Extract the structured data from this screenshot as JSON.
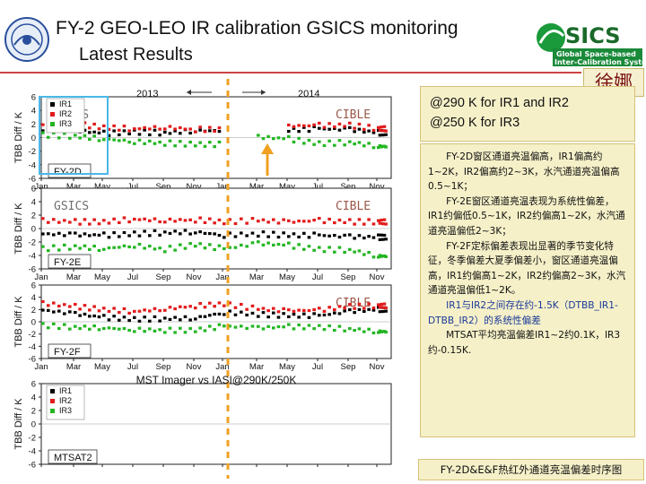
{
  "header": {
    "title_line1": "FY-2 GEO-LEO IR calibration GSICS monitoring",
    "title_line2": "Latest Results",
    "author": "徐娜",
    "gsics_logo": {
      "word": "GSICS",
      "line1": "Global Space-based",
      "line2": "Inter-Calibration System"
    }
  },
  "colors": {
    "ir1": "#000000",
    "ir2": "#e21b1b",
    "ir3": "#22b622",
    "accent_rule": "#cc4444",
    "box_fill": "#f5f0c8",
    "divider": "#f0a020"
  },
  "year_labels": [
    "2013",
    "2014"
  ],
  "notes": {
    "line1": "@290 K for IR1 and IR2",
    "line2": "@250 K for IR3"
  },
  "description": [
    "FY-2D窗区通道亮温偏高，IR1偏高约1~2K，IR2偏高约2~3K，水汽通道亮温偏高0.5~1K；",
    "FY-2E窗区通道亮温表现为系统性偏差，IR1约偏低0.5~1K，IR2约偏高1~2K，水汽通道亮温偏低2~3K；",
    "FY-2F定标偏差表现出显著的季节变化特征，冬季偏差大夏季偏差小，窗区通道亮温偏高，IR1约偏高1~2K，IR2约偏高2~3K，水汽通道亮温偏低1~2K。",
    "IR1与IR2之间存在约-1.5K（DTBB_IR1-DTBB_IR2）的系统性偏差",
    "MTSAT平均亮温偏差IR1~2约0.1K，IR3约-0.15K."
  ],
  "footer_caption": "FY-2D&E&F热红外通道亮温偏差时序图",
  "chart_data": {
    "type": "line",
    "xlabel": "MST Imager vs IASI@290K/250K",
    "ylabel": "TBB Diff / K",
    "ylim": [
      -6,
      6
    ],
    "yticks": [
      6,
      4,
      2,
      0,
      -2,
      -4,
      -6
    ],
    "x_months": [
      "Jan",
      "Mar",
      "May",
      "Jul",
      "Sep",
      "Nov",
      "Jan",
      "Mar",
      "May",
      "Jul",
      "Sep",
      "Nov"
    ],
    "legend": [
      "IR1",
      "IR2",
      "IR3"
    ],
    "watermarks": {
      "left": "GSICS",
      "right": "CIBLE"
    },
    "panels": [
      {
        "label": "FY-2D",
        "legend_shown": true,
        "watermark_left": "GSICS",
        "watermark_right": "CIBLE",
        "series": [
          {
            "name": "IR1",
            "values": [
              1.0,
              1.1,
              0.6,
              0.8,
              0.7,
              1.0,
              null,
              null,
              1.1,
              1.3,
              1.2,
              0.7
            ]
          },
          {
            "name": "IR2",
            "values": [
              1.6,
              2.0,
              1.5,
              1.3,
              1.5,
              1.2,
              null,
              null,
              1.7,
              1.8,
              1.8,
              1.3
            ]
          },
          {
            "name": "IR3",
            "values": [
              0.4,
              0.2,
              -0.2,
              -0.6,
              -0.8,
              -1.0,
              null,
              0.1,
              -0.2,
              -0.9,
              -0.7,
              -1.3
            ]
          }
        ]
      },
      {
        "label": "FY-2E",
        "legend_shown": false,
        "watermark_left": "GSICS",
        "watermark_right": "CIBLE",
        "series": [
          {
            "name": "IR1",
            "values": [
              -0.8,
              -0.9,
              -1.0,
              -0.8,
              -0.6,
              -0.5,
              -1.0,
              -0.8,
              -1.0,
              -1.0,
              -1.2,
              -1.3
            ]
          },
          {
            "name": "IR2",
            "values": [
              1.2,
              1.0,
              1.0,
              1.4,
              1.2,
              1.3,
              1.0,
              1.2,
              1.0,
              1.2,
              1.0,
              1.0
            ]
          },
          {
            "name": "IR3",
            "values": [
              -3.0,
              -2.7,
              -3.0,
              -2.5,
              -3.1,
              -2.4,
              -3.0,
              -2.2,
              -2.5,
              -3.1,
              -3.2,
              -4.1
            ]
          }
        ]
      },
      {
        "label": "FY-2F",
        "legend_shown": false,
        "watermark_left": "",
        "watermark_right": "CIBLE",
        "series": [
          {
            "name": "IR1",
            "values": [
              1.9,
              1.3,
              0.7,
              0.4,
              0.5,
              0.6,
              1.5,
              1.2,
              1.0,
              1.0,
              1.7,
              2.0
            ]
          },
          {
            "name": "IR2",
            "values": [
              3.0,
              2.5,
              2.0,
              1.7,
              2.1,
              2.6,
              2.9,
              2.1,
              1.8,
              1.9,
              2.5,
              2.6
            ]
          },
          {
            "name": "IR3",
            "values": [
              -0.6,
              -0.9,
              -1.0,
              -1.3,
              -1.4,
              -1.4,
              -0.7,
              -1.0,
              -0.8,
              -0.9,
              -1.2,
              -1.6
            ]
          }
        ]
      },
      {
        "label": "MTSAT2",
        "legend_shown": true,
        "watermark_left": "",
        "watermark_right": "",
        "series": [
          {
            "name": "IR1",
            "values": []
          },
          {
            "name": "IR2",
            "values": []
          },
          {
            "name": "IR3",
            "values": []
          }
        ]
      }
    ]
  }
}
